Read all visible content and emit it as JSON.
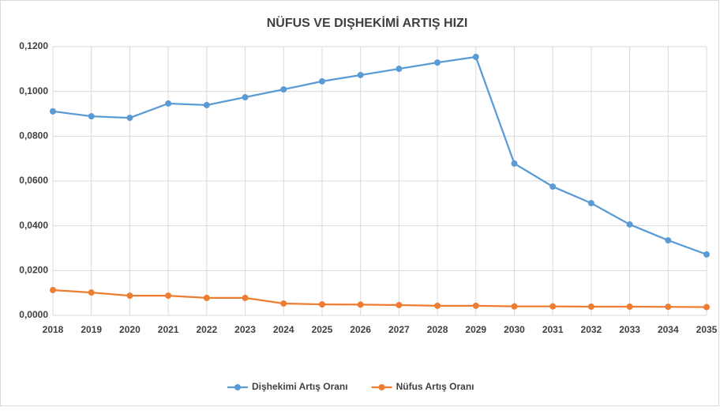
{
  "chart_data": {
    "type": "line",
    "title": "NÜFUS VE DIŞHEKİMİ ARTIŞ HIZI",
    "x": [
      2018,
      2019,
      2020,
      2021,
      2022,
      2023,
      2024,
      2025,
      2026,
      2027,
      2028,
      2029,
      2030,
      2031,
      2032,
      2033,
      2034,
      2035
    ],
    "xlim": [
      2018,
      2035
    ],
    "xticks": [
      2018,
      2019,
      2020,
      2021,
      2022,
      2023,
      2024,
      2025,
      2026,
      2027,
      2028,
      2029,
      2030,
      2031,
      2032,
      2033,
      2034,
      2035
    ],
    "ylim": [
      0,
      0.12
    ],
    "yticks": [
      {
        "value": 0,
        "label": "0,0000"
      },
      {
        "value": 0.02,
        "label": "0,0200"
      },
      {
        "value": 0.04,
        "label": "0,0400"
      },
      {
        "value": 0.06,
        "label": "0,0600"
      },
      {
        "value": 0.08,
        "label": "0,0800"
      },
      {
        "value": 0.1,
        "label": "0,1000"
      },
      {
        "value": 0.12,
        "label": "0,1200"
      }
    ],
    "grid": true,
    "legend": "bottom",
    "series": [
      {
        "name": "Dişhekimi Artış Oranı",
        "color": "#5b9bd5",
        "values": [
          0.0911,
          0.0889,
          0.0882,
          0.0946,
          0.0939,
          0.0974,
          0.1009,
          0.1045,
          0.1073,
          0.1101,
          0.1129,
          0.1154,
          0.0678,
          0.0575,
          0.0501,
          0.0406,
          0.0335,
          0.0272
        ]
      },
      {
        "name": "Nüfus Artış Oranı",
        "color": "#ed7d31",
        "values": [
          0.0113,
          0.0102,
          0.0088,
          0.0088,
          0.0078,
          0.0078,
          0.0053,
          0.0049,
          0.0048,
          0.0046,
          0.0043,
          0.0043,
          0.004,
          0.004,
          0.0039,
          0.0039,
          0.0038,
          0.0037
        ]
      }
    ]
  }
}
